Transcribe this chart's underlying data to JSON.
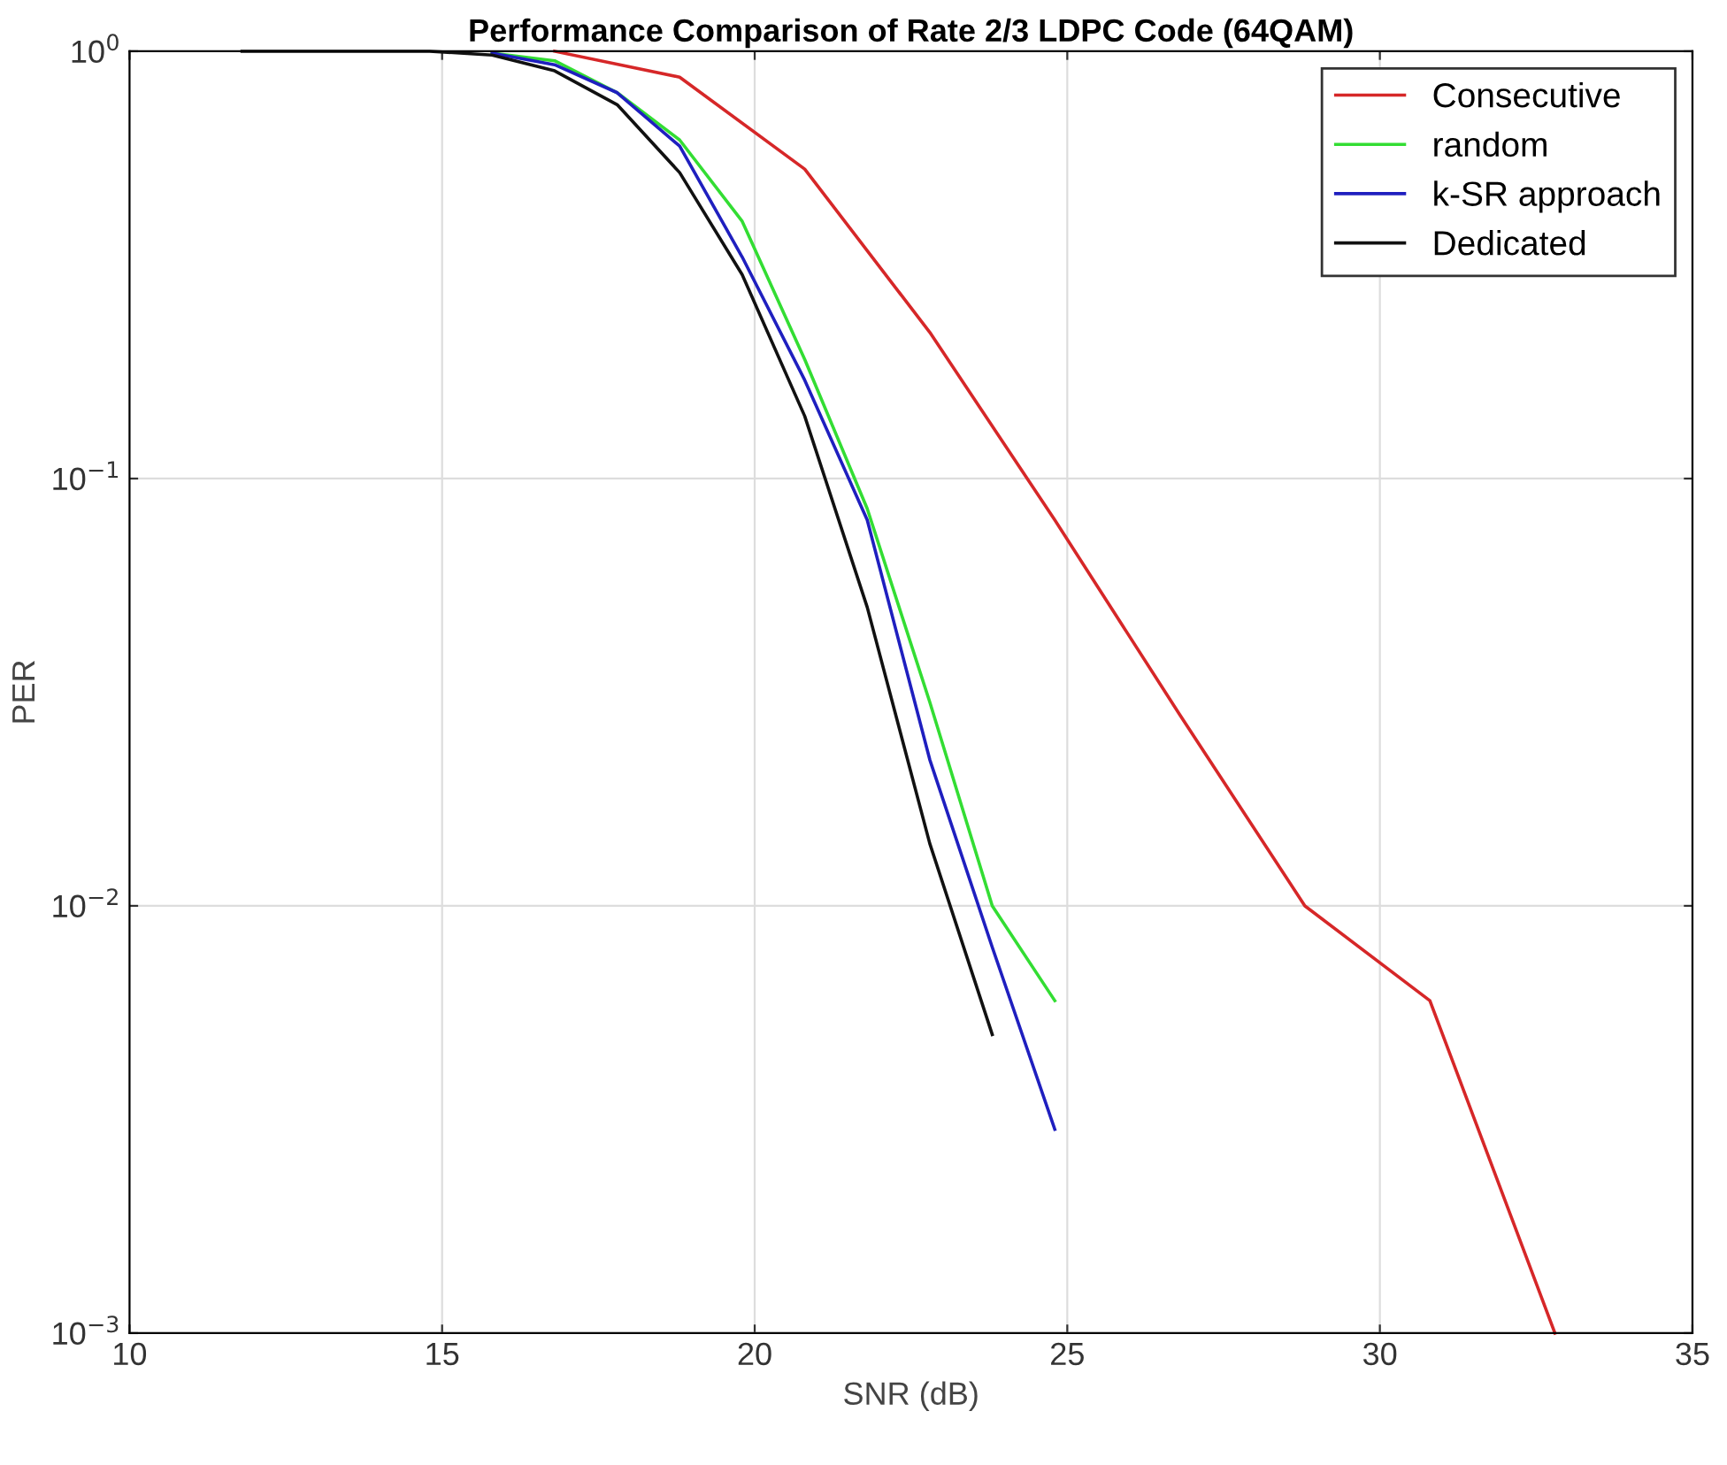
{
  "chart_data": {
    "type": "line",
    "title": "Performance Comparison of Rate 2/3 LDPC Code (64QAM)",
    "xlabel": "SNR (dB)",
    "ylabel": "PER",
    "log": "y",
    "grid": true,
    "legend": "top right",
    "xlim": [
      10,
      35
    ],
    "xticks": [
      10,
      15,
      20,
      25,
      30,
      35
    ],
    "ylim": [
      0.001,
      1
    ],
    "yticks": [
      {
        "value": 0.001,
        "label": "10$^{−3}$"
      },
      {
        "value": 0.01,
        "label": "10$^{−2}$"
      },
      {
        "value": 0.1,
        "label": "10$^{−1}$"
      },
      {
        "value": 1,
        "label": "10$^{0}$"
      }
    ],
    "series": [
      {
        "name": "Consecutive",
        "color": "#d62728",
        "x": [
          16.8,
          18.8,
          20.8,
          22.8,
          24.8,
          26.8,
          28.8,
          30.8,
          32.8
        ],
        "values": [
          1,
          0.87,
          0.53,
          0.22,
          0.08,
          0.028,
          0.01,
          0.006,
          0.001
        ]
      },
      {
        "name": "random",
        "color": "#33dd33",
        "x": [
          15.8,
          16.8,
          17.8,
          18.8,
          19.8,
          20.8,
          21.8,
          22.8,
          23.8,
          24.8
        ],
        "values": [
          0.99,
          0.95,
          0.8,
          0.62,
          0.4,
          0.19,
          0.085,
          0.03,
          0.01,
          0.006
        ]
      },
      {
        "name": "k-SR approach",
        "color": "#1f1fbf",
        "x": [
          15.8,
          16.8,
          17.8,
          18.8,
          19.8,
          20.8,
          21.8,
          22.8,
          23.8,
          24.8
        ],
        "values": [
          0.99,
          0.93,
          0.8,
          0.6,
          0.33,
          0.17,
          0.08,
          0.022,
          0.008,
          0.003
        ]
      },
      {
        "name": "Dedicated",
        "color": "#111111",
        "x": [
          11.8,
          12.8,
          13.8,
          14.8,
          15.8,
          16.8,
          17.8,
          18.8,
          19.8,
          20.8,
          21.8,
          22.8,
          23.8
        ],
        "values": [
          1,
          1,
          1,
          1,
          0.98,
          0.9,
          0.75,
          0.52,
          0.3,
          0.14,
          0.05,
          0.014,
          0.005
        ]
      }
    ]
  }
}
